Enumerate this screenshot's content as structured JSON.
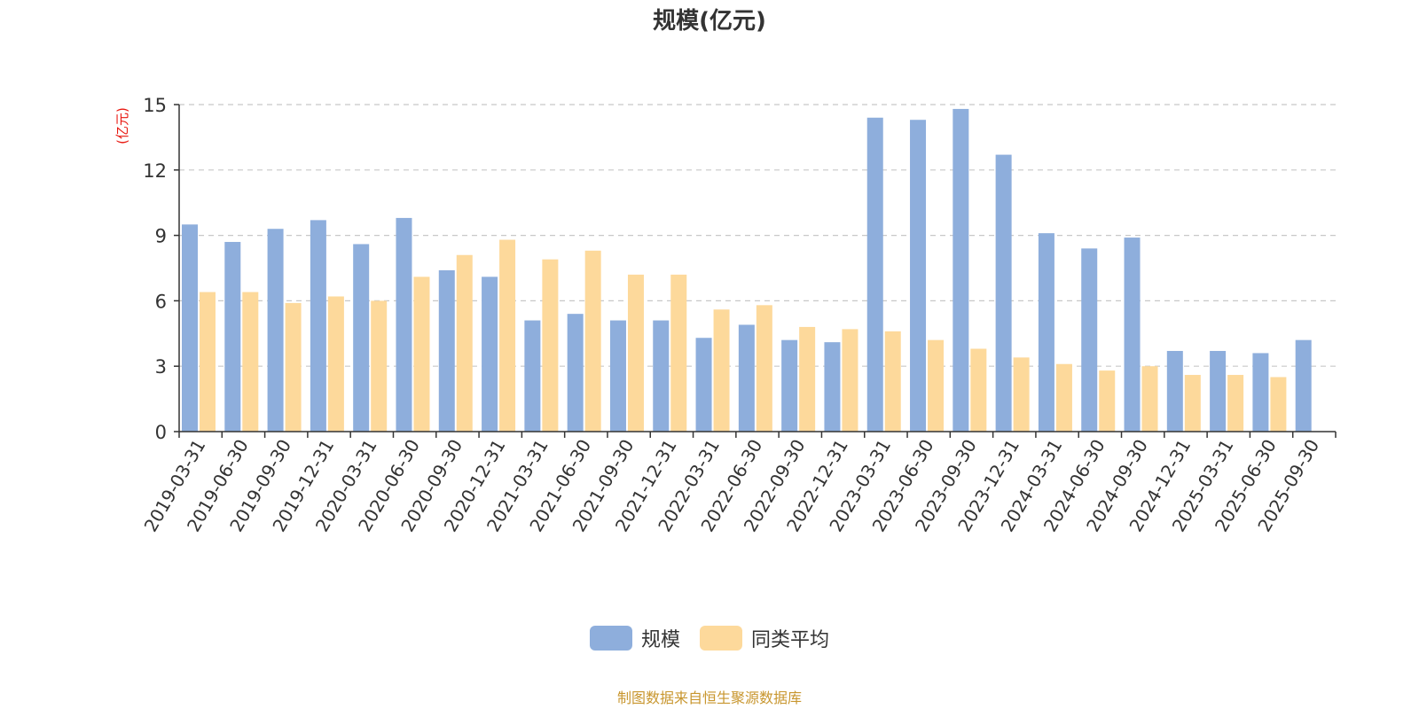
{
  "chart_data": {
    "type": "bar",
    "title": "规模(亿元)",
    "ylabel": "(亿元)",
    "ylim": [
      0,
      15
    ],
    "yticks": [
      0,
      3,
      6,
      9,
      12,
      15
    ],
    "grid": true,
    "legend_position": "bottom-center",
    "categories": [
      "2019-03-31",
      "2019-06-30",
      "2019-09-30",
      "2019-12-31",
      "2020-03-31",
      "2020-06-30",
      "2020-09-30",
      "2020-12-31",
      "2021-03-31",
      "2021-06-30",
      "2021-09-30",
      "2021-12-31",
      "2022-03-31",
      "2022-06-30",
      "2022-09-30",
      "2022-12-31",
      "2023-03-31",
      "2023-06-30",
      "2023-09-30",
      "2023-12-31",
      "2024-03-31",
      "2024-06-30",
      "2024-09-30",
      "2024-12-31",
      "2025-03-31",
      "2025-06-30",
      "2025-09-30"
    ],
    "series": [
      {
        "name": "规模",
        "color": "#8eaedc",
        "values": [
          9.5,
          8.7,
          9.3,
          9.7,
          8.6,
          9.8,
          7.4,
          7.1,
          5.1,
          5.4,
          5.1,
          5.1,
          4.3,
          4.9,
          4.2,
          4.1,
          14.4,
          14.3,
          14.8,
          12.7,
          9.1,
          8.4,
          8.9,
          3.7,
          3.7,
          3.6,
          4.2
        ]
      },
      {
        "name": "同类平均",
        "color": "#fdd99b",
        "values": [
          6.4,
          6.4,
          5.9,
          6.2,
          6.0,
          7.1,
          8.1,
          8.8,
          7.9,
          8.3,
          7.2,
          7.2,
          5.6,
          5.8,
          4.8,
          4.7,
          4.6,
          4.2,
          3.8,
          3.4,
          3.1,
          2.8,
          3.0,
          2.6,
          2.6,
          2.5,
          null
        ]
      }
    ]
  },
  "source_note": "制图数据来自恒生聚源数据库",
  "colors": {
    "axis": "#333333",
    "grid": "#c8c8c8",
    "ylabel": "#e8170f"
  }
}
